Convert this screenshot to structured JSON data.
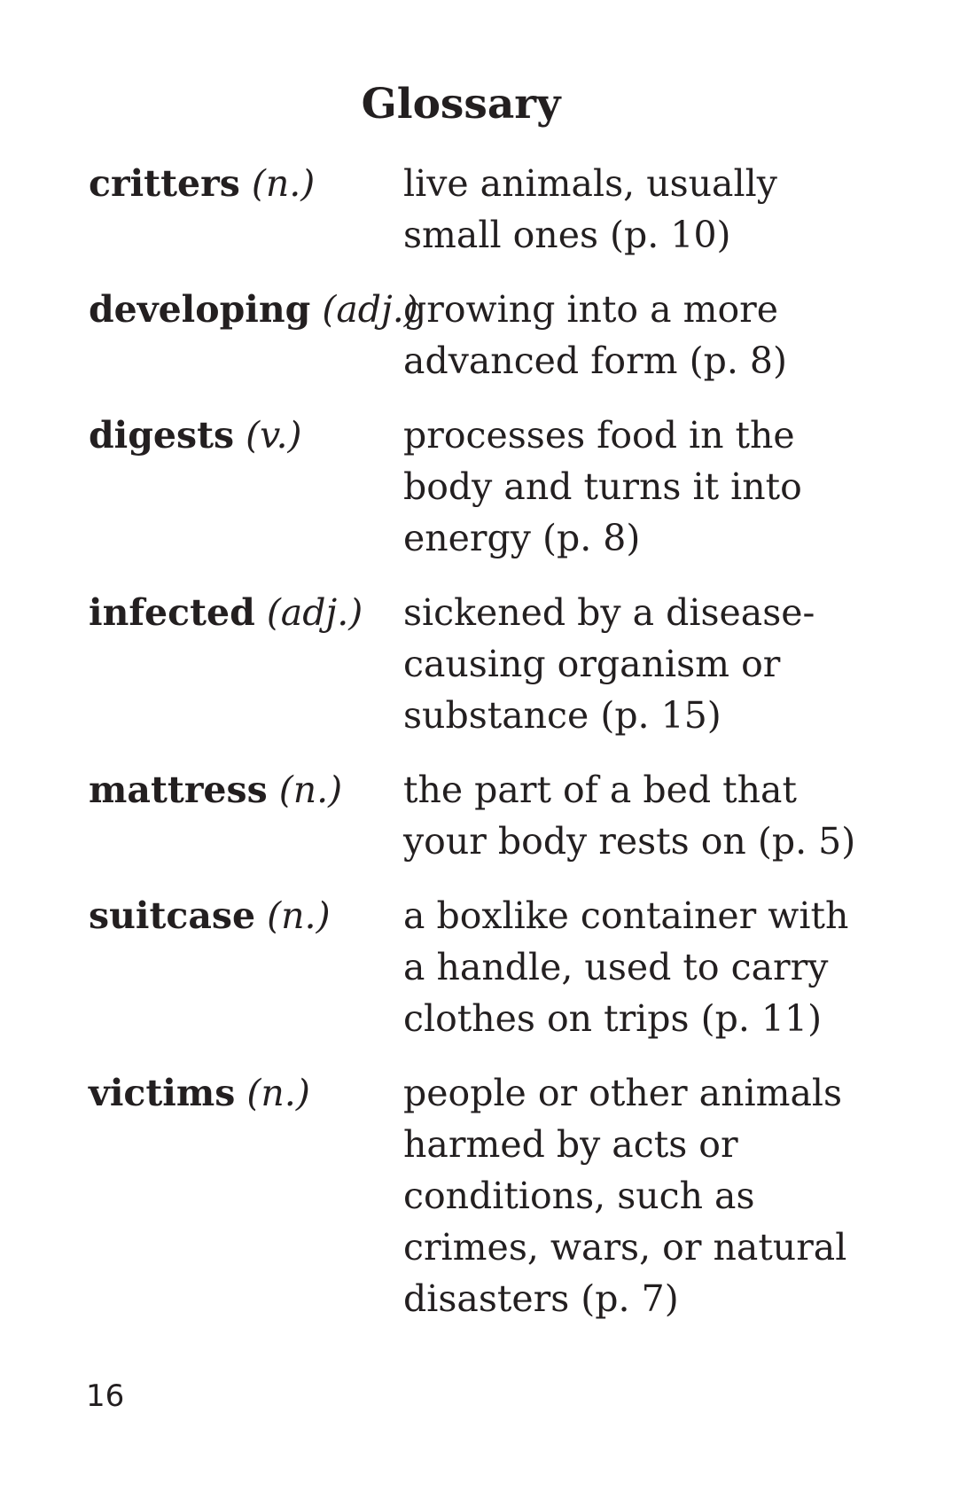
{
  "page": {
    "title": "Glossary",
    "page_number": "16"
  },
  "entries": [
    {
      "term": "critters",
      "pos": "(n.)",
      "lines": [
        "live animals, usually",
        "small ones (p. 10)"
      ]
    },
    {
      "term": "developing",
      "pos": "(adj.)",
      "lines": [
        "growing into a more",
        "advanced form (p. 8)"
      ]
    },
    {
      "term": "digests",
      "pos": "(v.)",
      "lines": [
        "processes food in the",
        "body and turns it into",
        "energy (p. 8)"
      ]
    },
    {
      "term": "infected",
      "pos": "(adj.)",
      "lines": [
        "sickened by a disease-",
        "causing organism or",
        "substance (p. 15)"
      ]
    },
    {
      "term": "mattress",
      "pos": "(n.)",
      "lines": [
        "the part of a bed that",
        "your body rests on (p. 5)"
      ]
    },
    {
      "term": "suitcase",
      "pos": "(n.)",
      "lines": [
        "a boxlike container with",
        "a handle, used to carry",
        "clothes on trips (p. 11)"
      ]
    },
    {
      "term": "victims",
      "pos": "(n.)",
      "lines": [
        "people or other animals",
        "harmed by acts or",
        "conditions, such as",
        "crimes, wars, or natural",
        "disasters (p. 7)"
      ]
    }
  ]
}
